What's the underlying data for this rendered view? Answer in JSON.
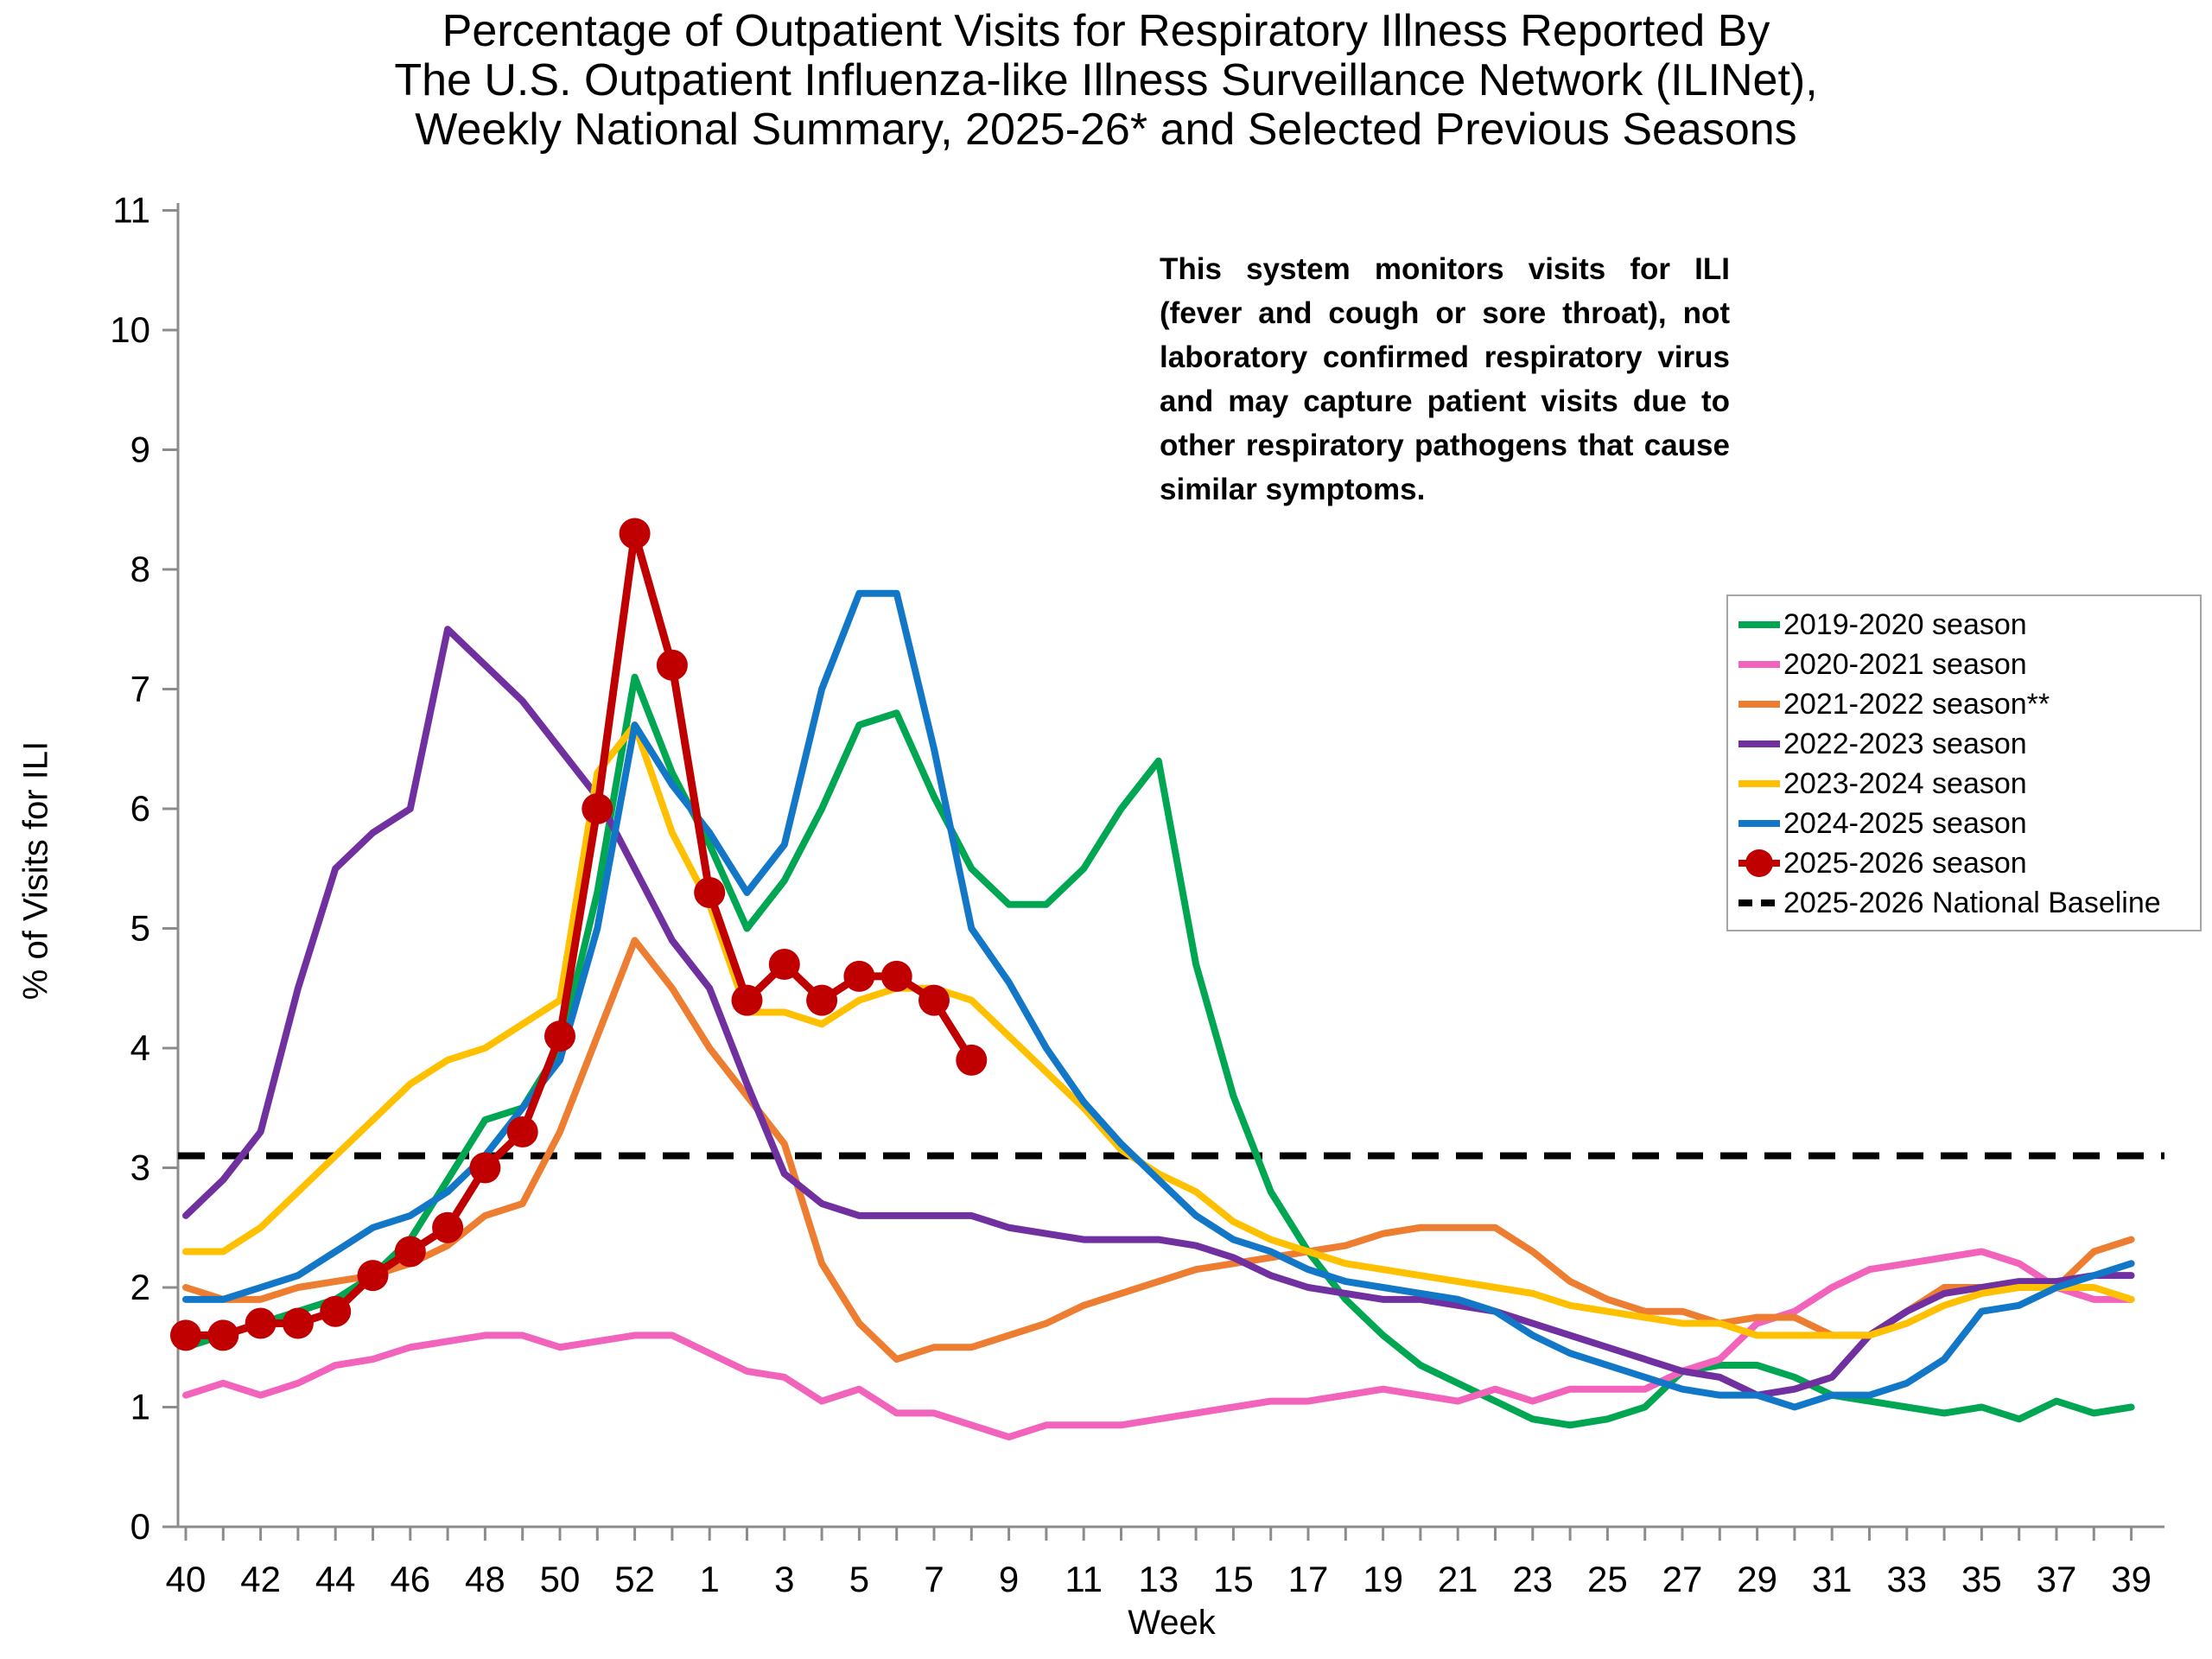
{
  "title": {
    "line1": "Percentage of Outpatient Visits for Respiratory Illness Reported By",
    "line2": "The U.S. Outpatient Influenza-like Illness Surveillance Network (ILINet),",
    "line3": "Weekly National Summary, 2025-26* and Selected Previous Seasons"
  },
  "annotation": "This system monitors visits for ILI (fever and cough or sore throat), not laboratory confirmed respiratory virus and may capture patient visits due to other respiratory pathogens that cause similar symptoms.",
  "chart_data": {
    "type": "line",
    "xlabel": "Week",
    "ylabel": "% of Visits for ILI",
    "ylim": [
      0,
      11
    ],
    "y_ticks": [
      0,
      1,
      2,
      3,
      4,
      5,
      6,
      7,
      8,
      9,
      10,
      11
    ],
    "grid": false,
    "legend_position": "right-inside",
    "weeks": [
      40,
      41,
      42,
      43,
      44,
      45,
      46,
      47,
      48,
      49,
      50,
      51,
      52,
      53,
      1,
      2,
      3,
      4,
      5,
      6,
      7,
      8,
      9,
      10,
      11,
      12,
      13,
      14,
      15,
      16,
      17,
      18,
      19,
      20,
      21,
      22,
      23,
      24,
      25,
      26,
      27,
      28,
      29,
      30,
      31,
      32,
      33,
      34,
      35,
      36,
      37,
      38,
      39
    ],
    "x_tick_labels": [
      40,
      42,
      44,
      46,
      48,
      50,
      52,
      1,
      3,
      5,
      7,
      9,
      11,
      13,
      15,
      17,
      19,
      21,
      23,
      25,
      27,
      29,
      31,
      33,
      35,
      37,
      39
    ],
    "baseline": {
      "label": "2025-2026 National Baseline",
      "value": 3.1,
      "color": "#000000",
      "style": "dashed"
    },
    "series": [
      {
        "name": "2019-2020 season",
        "color": "#00A651",
        "marker": false,
        "values": [
          1.5,
          1.6,
          1.7,
          1.8,
          1.9,
          2.1,
          2.4,
          2.9,
          3.4,
          3.5,
          4.0,
          5.3,
          7.1,
          6.3,
          5.7,
          5.0,
          5.4,
          6.0,
          6.7,
          6.8,
          6.1,
          5.5,
          5.2,
          5.2,
          5.5,
          6.0,
          6.4,
          4.7,
          3.6,
          2.8,
          2.3,
          1.9,
          1.6,
          1.35,
          1.2,
          1.05,
          0.9,
          0.85,
          0.9,
          1.0,
          1.3,
          1.35,
          1.35,
          1.25,
          1.1,
          1.05,
          1.0,
          0.95,
          1.0,
          0.9,
          1.05,
          0.95,
          1.0
        ]
      },
      {
        "name": "2020-2021 season",
        "color": "#F264BC",
        "marker": false,
        "values": [
          1.1,
          1.2,
          1.1,
          1.2,
          1.35,
          1.4,
          1.5,
          1.55,
          1.6,
          1.6,
          1.5,
          1.55,
          1.6,
          1.6,
          1.45,
          1.3,
          1.25,
          1.05,
          1.15,
          0.95,
          0.95,
          0.85,
          0.75,
          0.85,
          0.85,
          0.85,
          0.9,
          0.95,
          1.0,
          1.05,
          1.05,
          1.1,
          1.15,
          1.1,
          1.05,
          1.15,
          1.05,
          1.15,
          1.15,
          1.15,
          1.3,
          1.4,
          1.7,
          1.8,
          2.0,
          2.15,
          2.2,
          2.25,
          2.3,
          2.2,
          2.0,
          1.9,
          1.9
        ]
      },
      {
        "name": "2021-2022 season**",
        "color": "#ED7D31",
        "marker": false,
        "values": [
          2.0,
          1.9,
          1.9,
          2.0,
          2.05,
          2.1,
          2.2,
          2.35,
          2.6,
          2.7,
          3.3,
          4.1,
          4.9,
          4.5,
          4.0,
          3.6,
          3.2,
          2.2,
          1.7,
          1.4,
          1.5,
          1.5,
          1.6,
          1.7,
          1.85,
          1.95,
          2.05,
          2.15,
          2.2,
          2.25,
          2.3,
          2.35,
          2.45,
          2.5,
          2.5,
          2.5,
          2.3,
          2.05,
          1.9,
          1.8,
          1.8,
          1.7,
          1.75,
          1.75,
          1.6,
          1.6,
          1.8,
          2.0,
          2.0,
          2.0,
          2.0,
          2.3,
          2.4
        ]
      },
      {
        "name": "2022-2023 season",
        "color": "#7030A0",
        "marker": false,
        "values": [
          2.6,
          2.9,
          3.3,
          4.5,
          5.5,
          5.8,
          6.0,
          7.5,
          7.2,
          6.9,
          6.5,
          6.1,
          5.5,
          4.9,
          4.5,
          3.7,
          2.95,
          2.7,
          2.6,
          2.6,
          2.6,
          2.6,
          2.5,
          2.45,
          2.4,
          2.4,
          2.4,
          2.35,
          2.25,
          2.1,
          2.0,
          1.95,
          1.9,
          1.9,
          1.85,
          1.8,
          1.7,
          1.6,
          1.5,
          1.4,
          1.3,
          1.25,
          1.1,
          1.15,
          1.25,
          1.6,
          1.8,
          1.95,
          2.0,
          2.05,
          2.05,
          2.1,
          2.1
        ]
      },
      {
        "name": "2023-2024 season",
        "color": "#FFC000",
        "marker": false,
        "values": [
          2.3,
          2.3,
          2.5,
          2.8,
          3.1,
          3.4,
          3.7,
          3.9,
          4.0,
          4.2,
          4.4,
          6.3,
          6.7,
          5.8,
          5.2,
          4.3,
          4.3,
          4.2,
          4.4,
          4.5,
          4.5,
          4.4,
          4.1,
          3.8,
          3.5,
          3.15,
          2.95,
          2.8,
          2.55,
          2.4,
          2.3,
          2.2,
          2.15,
          2.1,
          2.05,
          2.0,
          1.95,
          1.85,
          1.8,
          1.75,
          1.7,
          1.7,
          1.6,
          1.6,
          1.6,
          1.6,
          1.7,
          1.85,
          1.95,
          2.0,
          2.0,
          2.0,
          1.9
        ]
      },
      {
        "name": "2024-2025 season",
        "color": "#1377C8",
        "marker": false,
        "values": [
          1.9,
          1.9,
          2.0,
          2.1,
          2.3,
          2.5,
          2.6,
          2.8,
          3.1,
          3.5,
          3.9,
          5.0,
          6.7,
          6.2,
          5.8,
          5.3,
          5.7,
          7.0,
          7.8,
          7.8,
          6.5,
          5.0,
          4.55,
          4.0,
          3.55,
          3.2,
          2.9,
          2.6,
          2.4,
          2.3,
          2.15,
          2.05,
          2.0,
          1.95,
          1.9,
          1.8,
          1.6,
          1.45,
          1.35,
          1.25,
          1.15,
          1.1,
          1.1,
          1.0,
          1.1,
          1.1,
          1.2,
          1.4,
          1.8,
          1.85,
          2.0,
          2.1,
          2.2
        ]
      },
      {
        "name": "2025-2026 season",
        "color": "#C00000",
        "marker": true,
        "values": [
          1.6,
          1.6,
          1.7,
          1.7,
          1.8,
          2.1,
          2.3,
          2.5,
          3.0,
          3.3,
          4.1,
          6.0,
          8.3,
          7.2,
          5.3,
          4.4,
          4.7,
          4.4,
          4.6,
          4.6,
          4.4,
          3.9,
          null,
          null,
          null,
          null,
          null,
          null,
          null,
          null,
          null,
          null,
          null,
          null,
          null,
          null,
          null,
          null,
          null,
          null,
          null,
          null,
          null,
          null,
          null,
          null,
          null,
          null,
          null,
          null,
          null,
          null,
          null
        ]
      }
    ]
  }
}
